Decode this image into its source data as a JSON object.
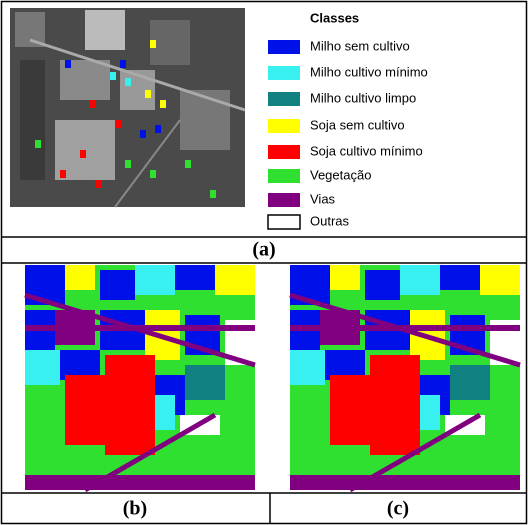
{
  "legend": {
    "title": "Classes",
    "items": [
      {
        "label": "Milho sem cultivo",
        "color": "#0010e8"
      },
      {
        "label": "Milho cultivo mínimo",
        "color": "#38f0f0"
      },
      {
        "label": "Milho cultivo limpo",
        "color": "#108080"
      },
      {
        "label": "Soja sem cultivo",
        "color": "#ffff00"
      },
      {
        "label": "Soja cultivo mínimo",
        "color": "#ff0000"
      },
      {
        "label": "Vegetação",
        "color": "#30e030"
      },
      {
        "label": "Vias",
        "color": "#800080"
      },
      {
        "label": "Outras",
        "color": "#ffffff"
      }
    ]
  },
  "captions": [
    "(a)",
    "(b)",
    "(c)"
  ]
}
